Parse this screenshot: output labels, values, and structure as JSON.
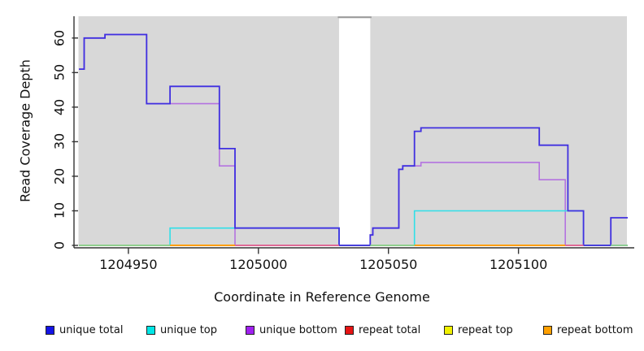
{
  "figure": {
    "x_axis_title": "Coordinate in Reference Genome",
    "y_axis_title": "Read Coverage Depth",
    "panel_bg": "#d8d8d8",
    "axis_color": "#333333"
  },
  "chart_data": {
    "type": "line",
    "subtype": "step-coverage",
    "title": "",
    "xlabel": "Coordinate in Reference Genome",
    "ylabel": "Read Coverage Depth",
    "xlim": [
      1204930.8,
      1205141.7
    ],
    "ylim": [
      0,
      66.3
    ],
    "x_ticks": [
      1204950,
      1205000,
      1205050,
      1205100
    ],
    "y_ticks": [
      0,
      10,
      20,
      30,
      40,
      50,
      60
    ],
    "grid": false,
    "legend_position": "bottom",
    "panel_bg": "#d8d8d8",
    "gap_region": {
      "x0": 1205031,
      "x1": 1205043,
      "fill": "#ffffff",
      "top_line_color": "#999999"
    },
    "series": [
      {
        "name": "repeat total",
        "color": "#e02020",
        "width": 1.4,
        "steps": [
          [
            1204931,
            0
          ],
          [
            1205142,
            0
          ]
        ]
      },
      {
        "name": "repeat top",
        "color": "#f0e000",
        "width": 1.4,
        "steps": [
          [
            1204931,
            0
          ],
          [
            1205142,
            0
          ]
        ]
      },
      {
        "name": "repeat bottom",
        "color": "#ff9d00",
        "width": 1.6,
        "steps": [
          [
            1204931,
            0
          ],
          [
            1205142,
            0
          ]
        ]
      },
      {
        "name": "unique bottom",
        "color": "#b473e0",
        "width": 1.6,
        "steps": [
          [
            1204931,
            51
          ],
          [
            1204933,
            60
          ],
          [
            1204941,
            61
          ],
          [
            1204957,
            41
          ],
          [
            1204985,
            23
          ],
          [
            1204991,
            0
          ],
          [
            1205043,
            3
          ],
          [
            1205044,
            5
          ],
          [
            1205054,
            22
          ],
          [
            1205055.5,
            23
          ],
          [
            1205062.5,
            24
          ],
          [
            1205108,
            19
          ],
          [
            1205118,
            0
          ],
          [
            1205142,
            0
          ]
        ]
      },
      {
        "name": "unique top",
        "color": "#30dfe8",
        "width": 1.6,
        "steps": [
          [
            1204931,
            0
          ],
          [
            1204966,
            5
          ],
          [
            1205031,
            0
          ],
          [
            1205060,
            10
          ],
          [
            1205125,
            0
          ],
          [
            1205142,
            0
          ]
        ]
      },
      {
        "name": "unique total",
        "color": "#4030e0",
        "width": 1.8,
        "steps": [
          [
            1204931,
            51
          ],
          [
            1204933,
            60
          ],
          [
            1204941,
            61
          ],
          [
            1204957,
            41
          ],
          [
            1204966,
            46
          ],
          [
            1204985,
            28
          ],
          [
            1204991,
            5
          ],
          [
            1205031,
            0
          ],
          [
            1205043,
            3
          ],
          [
            1205044,
            5
          ],
          [
            1205054,
            22
          ],
          [
            1205055.5,
            23
          ],
          [
            1205060,
            33
          ],
          [
            1205062.5,
            34
          ],
          [
            1205108,
            29
          ],
          [
            1205119,
            10
          ],
          [
            1205125,
            0
          ],
          [
            1205135.5,
            8
          ],
          [
            1205142,
            8
          ]
        ]
      }
    ],
    "zero_line_overlays": [
      {
        "x0": 1204931,
        "x1": 1204966,
        "color": "#8fd08f"
      },
      {
        "x0": 1204966,
        "x1": 1204991,
        "color": "#ff9d00"
      },
      {
        "x0": 1204991,
        "x1": 1205031,
        "color": "#e0669a"
      },
      {
        "x0": 1205043,
        "x1": 1205060,
        "color": "#8fd08f"
      },
      {
        "x0": 1205060,
        "x1": 1205118,
        "color": "#ff9d00"
      },
      {
        "x0": 1205118,
        "x1": 1205125,
        "color": "#e0669a"
      },
      {
        "x0": 1205135.5,
        "x1": 1205142,
        "color": "#8fd08f"
      }
    ]
  },
  "legend": {
    "items": [
      {
        "label": "unique total",
        "color": "#1414e6"
      },
      {
        "label": "unique top",
        "color": "#00e6e6"
      },
      {
        "label": "unique bottom",
        "color": "#a020f0"
      },
      {
        "label": "repeat total",
        "color": "#e61414"
      },
      {
        "label": "repeat top",
        "color": "#f0f000"
      },
      {
        "label": "repeat bottom",
        "color": "#ffa000"
      }
    ]
  }
}
